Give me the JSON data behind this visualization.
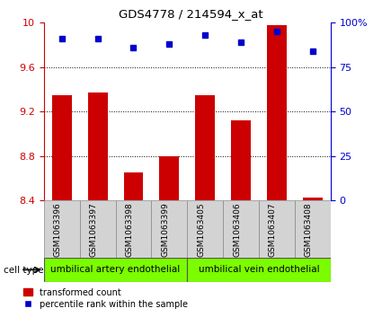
{
  "title": "GDS4778 / 214594_x_at",
  "samples": [
    "GSM1063396",
    "GSM1063397",
    "GSM1063398",
    "GSM1063399",
    "GSM1063405",
    "GSM1063406",
    "GSM1063407",
    "GSM1063408"
  ],
  "transformed_count": [
    9.35,
    9.37,
    8.65,
    8.8,
    9.35,
    9.12,
    9.98,
    8.43
  ],
  "percentile_rank": [
    91,
    91,
    86,
    88,
    93,
    89,
    95,
    84
  ],
  "ylim_left": [
    8.4,
    10.0
  ],
  "ylim_right": [
    0,
    100
  ],
  "yticks_left": [
    8.4,
    8.8,
    9.2,
    9.6,
    10.0
  ],
  "ytick_labels_left": [
    "8.4",
    "8.8",
    "9.2",
    "9.6",
    "10"
  ],
  "yticks_right": [
    0,
    25,
    50,
    75,
    100
  ],
  "ytick_labels_right": [
    "0",
    "25",
    "50",
    "75",
    "100%"
  ],
  "bar_color": "#cc0000",
  "dot_color": "#0000cc",
  "group1_label": "umbilical artery endothelial",
  "group2_label": "umbilical vein endothelial",
  "group1_count": 4,
  "group2_count": 4,
  "cell_type_label": "cell type",
  "legend_bar_label": "transformed count",
  "legend_dot_label": "percentile rank within the sample",
  "grid_yticks": [
    8.8,
    9.2,
    9.6
  ],
  "bar_width": 0.55,
  "left_color": "#cc0000",
  "right_color": "#0000cc"
}
